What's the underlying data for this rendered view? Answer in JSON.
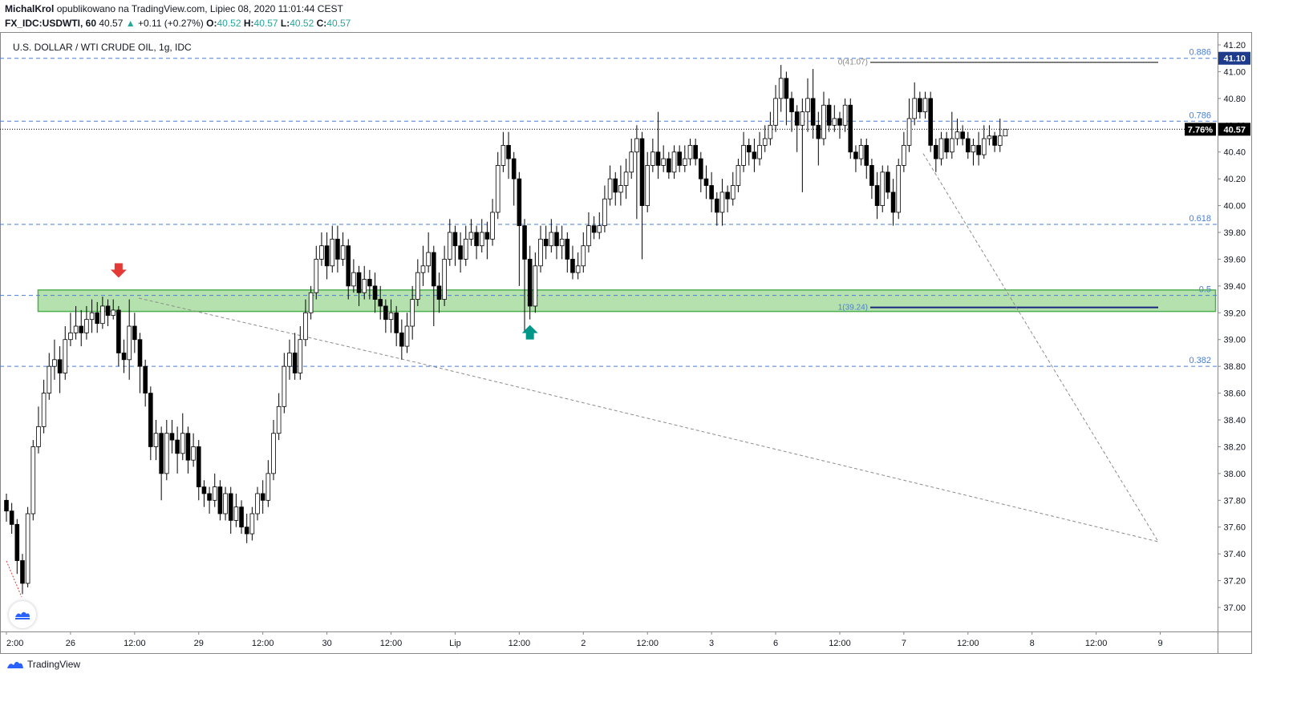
{
  "header": {
    "author": "MichalKrol",
    "published": "opublikowano na TradingView.com, Lipiec 08, 2020 11:01:44 CEST",
    "symbol": "FX_IDC:USDWTI, 60",
    "last": "40.57",
    "change": "+0.11 (+0.27%)",
    "o_label": "O:",
    "o_value": "40.52",
    "h_label": "H:",
    "h_value": "40.57",
    "l_label": "L:",
    "l_value": "40.52",
    "c_label": "C:",
    "c_value": "40.57"
  },
  "chart_title": "U.S. DOLLAR / WTI CRUDE OIL, 1g, IDC",
  "footer": {
    "brand": "TradingView"
  },
  "colors": {
    "up_fill": "#ffffff",
    "down_fill": "#000000",
    "wick": "#000000",
    "fib_line": "#4a7fd6",
    "zone_fill": "#a8dca0",
    "zone_stroke": "#4caf50",
    "arrow_down": "#e53935",
    "arrow_up": "#009688",
    "level_dark": "#1a237e"
  },
  "chart_data": {
    "type": "candlestick",
    "title": "U.S. DOLLAR / WTI CRUDE OIL, 1g, IDC",
    "y_ticks": [
      "41.20",
      "41.00",
      "40.80",
      "40.60",
      "40.40",
      "40.20",
      "40.00",
      "39.80",
      "39.60",
      "39.40",
      "39.20",
      "39.00",
      "38.80",
      "38.60",
      "38.40",
      "38.20",
      "38.00",
      "37.80",
      "37.60",
      "37.40",
      "37.20",
      "37.00"
    ],
    "ylim": [
      36.8,
      41.35
    ],
    "x_ticks": [
      {
        "label": "2:00",
        "i": 0
      },
      {
        "label": "26",
        "i": 12
      },
      {
        "label": "12:00",
        "i": 24
      },
      {
        "label": "29",
        "i": 36
      },
      {
        "label": "12:00",
        "i": 48
      },
      {
        "label": "30",
        "i": 60
      },
      {
        "label": "12:00",
        "i": 72
      },
      {
        "label": "Lip",
        "i": 84
      },
      {
        "label": "12:00",
        "i": 96
      },
      {
        "label": "2",
        "i": 108
      },
      {
        "label": "12:00",
        "i": 120
      },
      {
        "label": "3",
        "i": 132
      },
      {
        "label": "6",
        "i": 144
      },
      {
        "label": "12:00",
        "i": 156
      },
      {
        "label": "7",
        "i": 168
      },
      {
        "label": "12:00",
        "i": 180
      },
      {
        "label": "8",
        "i": 192
      },
      {
        "label": "12:00",
        "i": 204
      },
      {
        "label": "9",
        "i": 216
      }
    ],
    "last_price": "40.57",
    "last_price_value": 40.57,
    "pct_label": "7.76%",
    "high_label": "41.10",
    "high_value": 41.1,
    "fib_levels": [
      {
        "label": "0.886",
        "value": 41.1
      },
      {
        "label": "0.786",
        "value": 40.63
      },
      {
        "label": "0.618",
        "value": 39.86
      },
      {
        "label": "0.5",
        "value": 39.33
      },
      {
        "label": "0.382",
        "value": 38.8
      }
    ],
    "fib_top_label": "0(41.07)",
    "fib_top_value": 41.07,
    "fib_bottom_label": "1(39.24)",
    "fib_bottom_value": 39.24,
    "zone": {
      "low": 39.24,
      "high": 39.32,
      "from_i": 6,
      "to_i": 216
    },
    "annotations": [
      {
        "type": "arrow-down",
        "i": 21,
        "price": 39.45
      },
      {
        "type": "arrow-up",
        "i": 98,
        "price": 39.12
      }
    ],
    "candles": [
      [
        37.8,
        37.72,
        37.85,
        37.64
      ],
      [
        37.72,
        37.62,
        37.78,
        37.55
      ],
      [
        37.62,
        37.35,
        37.66,
        37.25
      ],
      [
        37.35,
        37.18,
        37.4,
        37.1
      ],
      [
        37.18,
        37.7,
        37.75,
        37.15
      ],
      [
        37.7,
        38.2,
        38.25,
        37.65
      ],
      [
        38.2,
        38.35,
        38.5,
        38.15
      ],
      [
        38.35,
        38.6,
        38.7,
        38.3
      ],
      [
        38.6,
        38.8,
        38.9,
        38.55
      ],
      [
        38.8,
        38.85,
        39.0,
        38.7
      ],
      [
        38.85,
        38.75,
        38.95,
        38.6
      ],
      [
        38.75,
        39.0,
        39.1,
        38.7
      ],
      [
        39.0,
        39.05,
        39.2,
        38.95
      ],
      [
        39.05,
        39.1,
        39.25,
        39.0
      ],
      [
        39.1,
        39.05,
        39.22,
        38.95
      ],
      [
        39.05,
        39.15,
        39.25,
        39.0
      ],
      [
        39.15,
        39.2,
        39.3,
        39.05
      ],
      [
        39.2,
        39.12,
        39.28,
        39.05
      ],
      [
        39.12,
        39.25,
        39.32,
        39.08
      ],
      [
        39.25,
        39.18,
        39.3,
        39.1
      ],
      [
        39.18,
        39.22,
        39.3,
        39.15
      ],
      [
        39.22,
        38.9,
        39.25,
        38.8
      ],
      [
        38.9,
        38.85,
        39.0,
        38.75
      ],
      [
        38.85,
        39.1,
        39.3,
        38.7
      ],
      [
        39.1,
        39.0,
        39.2,
        38.9
      ],
      [
        39.0,
        38.8,
        39.05,
        38.6
      ],
      [
        38.8,
        38.6,
        38.85,
        38.5
      ],
      [
        38.6,
        38.2,
        38.65,
        38.1
      ],
      [
        38.2,
        38.3,
        38.4,
        38.1
      ],
      [
        38.3,
        38.0,
        38.35,
        37.8
      ],
      [
        38.0,
        38.3,
        38.4,
        37.95
      ],
      [
        38.3,
        38.25,
        38.4,
        38.15
      ],
      [
        38.25,
        38.15,
        38.35,
        38.0
      ],
      [
        38.15,
        38.3,
        38.45,
        38.1
      ],
      [
        38.3,
        38.1,
        38.35,
        38.0
      ],
      [
        38.1,
        38.2,
        38.3,
        38.05
      ],
      [
        38.2,
        37.9,
        38.25,
        37.8
      ],
      [
        37.9,
        37.85,
        37.95,
        37.75
      ],
      [
        37.85,
        37.8,
        37.9,
        37.7
      ],
      [
        37.8,
        37.9,
        38.0,
        37.75
      ],
      [
        37.9,
        37.7,
        37.95,
        37.65
      ],
      [
        37.7,
        37.85,
        37.9,
        37.65
      ],
      [
        37.85,
        37.65,
        37.9,
        37.55
      ],
      [
        37.65,
        37.75,
        37.85,
        37.6
      ],
      [
        37.75,
        37.6,
        37.8,
        37.55
      ],
      [
        37.6,
        37.55,
        37.7,
        37.48
      ],
      [
        37.55,
        37.7,
        37.75,
        37.5
      ],
      [
        37.7,
        37.85,
        37.9,
        37.65
      ],
      [
        37.85,
        37.8,
        37.95,
        37.7
      ],
      [
        37.8,
        38.0,
        38.1,
        37.75
      ],
      [
        38.0,
        38.3,
        38.4,
        37.95
      ],
      [
        38.3,
        38.5,
        38.6,
        38.25
      ],
      [
        38.5,
        38.8,
        38.9,
        38.45
      ],
      [
        38.8,
        38.9,
        39.0,
        38.7
      ],
      [
        38.9,
        38.75,
        39.05,
        38.7
      ],
      [
        38.75,
        39.0,
        39.1,
        38.7
      ],
      [
        39.0,
        39.2,
        39.3,
        38.95
      ],
      [
        39.2,
        39.35,
        39.4,
        39.15
      ],
      [
        39.35,
        39.6,
        39.7,
        39.3
      ],
      [
        39.6,
        39.7,
        39.8,
        39.55
      ],
      [
        39.7,
        39.55,
        39.8,
        39.45
      ],
      [
        39.55,
        39.75,
        39.85,
        39.5
      ],
      [
        39.75,
        39.6,
        39.85,
        39.5
      ],
      [
        39.6,
        39.7,
        39.8,
        39.55
      ],
      [
        39.7,
        39.4,
        39.75,
        39.3
      ],
      [
        39.4,
        39.5,
        39.6,
        39.35
      ],
      [
        39.5,
        39.35,
        39.55,
        39.25
      ],
      [
        39.35,
        39.45,
        39.55,
        39.3
      ],
      [
        39.45,
        39.4,
        39.52,
        39.3
      ],
      [
        39.4,
        39.3,
        39.5,
        39.2
      ],
      [
        39.3,
        39.25,
        39.4,
        39.15
      ],
      [
        39.25,
        39.15,
        39.3,
        39.05
      ],
      [
        39.15,
        39.2,
        39.3,
        39.05
      ],
      [
        39.2,
        39.05,
        39.25,
        38.95
      ],
      [
        39.05,
        38.95,
        39.15,
        38.85
      ],
      [
        38.95,
        39.1,
        39.2,
        38.9
      ],
      [
        39.1,
        39.3,
        39.4,
        39.0
      ],
      [
        39.3,
        39.5,
        39.6,
        39.25
      ],
      [
        39.5,
        39.55,
        39.7,
        39.4
      ],
      [
        39.55,
        39.65,
        39.8,
        39.5
      ],
      [
        39.65,
        39.4,
        39.7,
        39.1
      ],
      [
        39.4,
        39.3,
        39.5,
        39.2
      ],
      [
        39.3,
        39.6,
        39.7,
        39.25
      ],
      [
        39.6,
        39.8,
        39.9,
        39.55
      ],
      [
        39.8,
        39.7,
        39.85,
        39.55
      ],
      [
        39.7,
        39.6,
        39.8,
        39.5
      ],
      [
        39.6,
        39.75,
        39.85,
        39.55
      ],
      [
        39.75,
        39.8,
        39.9,
        39.7
      ],
      [
        39.8,
        39.7,
        39.85,
        39.6
      ],
      [
        39.7,
        39.8,
        39.9,
        39.65
      ],
      [
        39.8,
        39.75,
        39.88,
        39.6
      ],
      [
        39.75,
        39.95,
        40.05,
        39.7
      ],
      [
        39.95,
        40.3,
        40.4,
        39.9
      ],
      [
        40.3,
        40.45,
        40.55,
        40.25
      ],
      [
        40.45,
        40.35,
        40.55,
        40.2
      ],
      [
        40.35,
        40.2,
        40.4,
        40.0
      ],
      [
        40.2,
        39.85,
        40.25,
        39.4
      ],
      [
        39.85,
        39.6,
        39.9,
        39.05
      ],
      [
        39.6,
        39.25,
        39.7,
        39.15
      ],
      [
        39.25,
        39.55,
        39.65,
        39.2
      ],
      [
        39.55,
        39.75,
        39.85,
        39.5
      ],
      [
        39.75,
        39.7,
        39.85,
        39.6
      ],
      [
        39.7,
        39.8,
        39.9,
        39.65
      ],
      [
        39.8,
        39.7,
        39.85,
        39.6
      ],
      [
        39.7,
        39.75,
        39.85,
        39.6
      ],
      [
        39.75,
        39.6,
        39.8,
        39.5
      ],
      [
        39.6,
        39.5,
        39.7,
        39.45
      ],
      [
        39.5,
        39.55,
        39.65,
        39.45
      ],
      [
        39.55,
        39.7,
        39.8,
        39.5
      ],
      [
        39.7,
        39.85,
        39.95,
        39.65
      ],
      [
        39.85,
        39.8,
        39.92,
        39.75
      ],
      [
        39.8,
        39.85,
        39.95,
        39.75
      ],
      [
        39.85,
        40.05,
        40.15,
        39.8
      ],
      [
        40.05,
        40.2,
        40.3,
        40.0
      ],
      [
        40.2,
        40.1,
        40.25,
        40.0
      ],
      [
        40.1,
        40.15,
        40.3,
        40.0
      ],
      [
        40.15,
        40.25,
        40.35,
        40.05
      ],
      [
        40.25,
        40.4,
        40.5,
        40.2
      ],
      [
        40.4,
        40.5,
        40.6,
        39.9
      ],
      [
        40.5,
        40.0,
        40.55,
        39.6
      ],
      [
        40.0,
        40.3,
        40.4,
        39.95
      ],
      [
        40.3,
        40.4,
        40.5,
        40.25
      ],
      [
        40.4,
        40.3,
        40.7,
        40.2
      ],
      [
        40.3,
        40.35,
        40.45,
        40.25
      ],
      [
        40.35,
        40.25,
        40.4,
        40.2
      ],
      [
        40.25,
        40.4,
        40.45,
        40.2
      ],
      [
        40.4,
        40.3,
        40.45,
        40.25
      ],
      [
        40.3,
        40.35,
        40.45,
        40.25
      ],
      [
        40.35,
        40.45,
        40.5,
        40.3
      ],
      [
        40.45,
        40.35,
        40.5,
        40.3
      ],
      [
        40.35,
        40.2,
        40.4,
        40.1
      ],
      [
        40.2,
        40.15,
        40.3,
        40.05
      ],
      [
        40.15,
        40.05,
        40.25,
        39.95
      ],
      [
        40.05,
        39.95,
        40.1,
        39.85
      ],
      [
        39.95,
        40.1,
        40.2,
        39.85
      ],
      [
        40.1,
        40.05,
        40.15,
        39.95
      ],
      [
        40.05,
        40.15,
        40.25,
        40.0
      ],
      [
        40.15,
        40.3,
        40.35,
        40.1
      ],
      [
        40.3,
        40.45,
        40.55,
        40.25
      ],
      [
        40.45,
        40.4,
        40.5,
        40.3
      ],
      [
        40.4,
        40.35,
        40.5,
        40.25
      ],
      [
        40.35,
        40.45,
        40.55,
        40.3
      ],
      [
        40.45,
        40.5,
        40.6,
        40.4
      ],
      [
        40.5,
        40.6,
        40.7,
        40.45
      ],
      [
        40.6,
        40.8,
        40.9,
        40.55
      ],
      [
        40.8,
        40.95,
        41.05,
        40.7
      ],
      [
        40.95,
        40.8,
        41.0,
        40.6
      ],
      [
        40.8,
        40.7,
        40.85,
        40.55
      ],
      [
        40.7,
        40.6,
        40.75,
        40.4
      ],
      [
        40.6,
        40.7,
        40.8,
        40.1
      ],
      [
        40.7,
        40.8,
        40.95,
        40.55
      ],
      [
        40.8,
        40.6,
        41.02,
        40.5
      ],
      [
        40.6,
        40.5,
        40.7,
        40.3
      ],
      [
        40.5,
        40.75,
        40.85,
        40.45
      ],
      [
        40.75,
        40.6,
        40.8,
        40.55
      ],
      [
        40.6,
        40.65,
        40.75,
        40.55
      ],
      [
        40.65,
        40.6,
        40.7,
        40.5
      ],
      [
        40.6,
        40.75,
        40.8,
        40.55
      ],
      [
        40.75,
        40.4,
        40.8,
        40.35
      ],
      [
        40.4,
        40.35,
        40.45,
        40.25
      ],
      [
        40.35,
        40.45,
        40.5,
        40.3
      ],
      [
        40.45,
        40.3,
        40.5,
        40.2
      ],
      [
        40.3,
        40.15,
        40.35,
        40.05
      ],
      [
        40.15,
        40.0,
        40.25,
        39.9
      ],
      [
        40.0,
        40.25,
        40.3,
        39.95
      ],
      [
        40.25,
        40.1,
        40.3,
        40.05
      ],
      [
        40.1,
        39.95,
        40.2,
        39.85
      ],
      [
        39.95,
        40.3,
        40.35,
        39.9
      ],
      [
        40.3,
        40.45,
        40.55,
        40.25
      ],
      [
        40.45,
        40.65,
        40.8,
        40.4
      ],
      [
        40.65,
        40.8,
        40.92,
        40.6
      ],
      [
        40.8,
        40.7,
        40.85,
        40.65
      ],
      [
        40.7,
        40.8,
        40.85,
        40.65
      ],
      [
        40.8,
        40.45,
        40.85,
        40.4
      ],
      [
        40.45,
        40.35,
        40.5,
        40.25
      ],
      [
        40.35,
        40.5,
        40.55,
        40.3
      ],
      [
        40.5,
        40.4,
        40.55,
        40.35
      ],
      [
        40.4,
        40.5,
        40.7,
        40.35
      ],
      [
        40.5,
        40.55,
        40.65,
        40.45
      ],
      [
        40.55,
        40.5,
        40.6,
        40.45
      ],
      [
        40.5,
        40.4,
        40.55,
        40.35
      ],
      [
        40.4,
        40.45,
        40.5,
        40.3
      ],
      [
        40.45,
        40.38,
        40.55,
        40.3
      ],
      [
        40.38,
        40.5,
        40.6,
        40.35
      ],
      [
        40.5,
        40.52,
        40.6,
        40.45
      ],
      [
        40.52,
        40.45,
        40.55,
        40.4
      ],
      [
        40.45,
        40.52,
        40.65,
        40.4
      ],
      [
        40.52,
        40.57,
        40.57,
        40.52
      ]
    ]
  }
}
